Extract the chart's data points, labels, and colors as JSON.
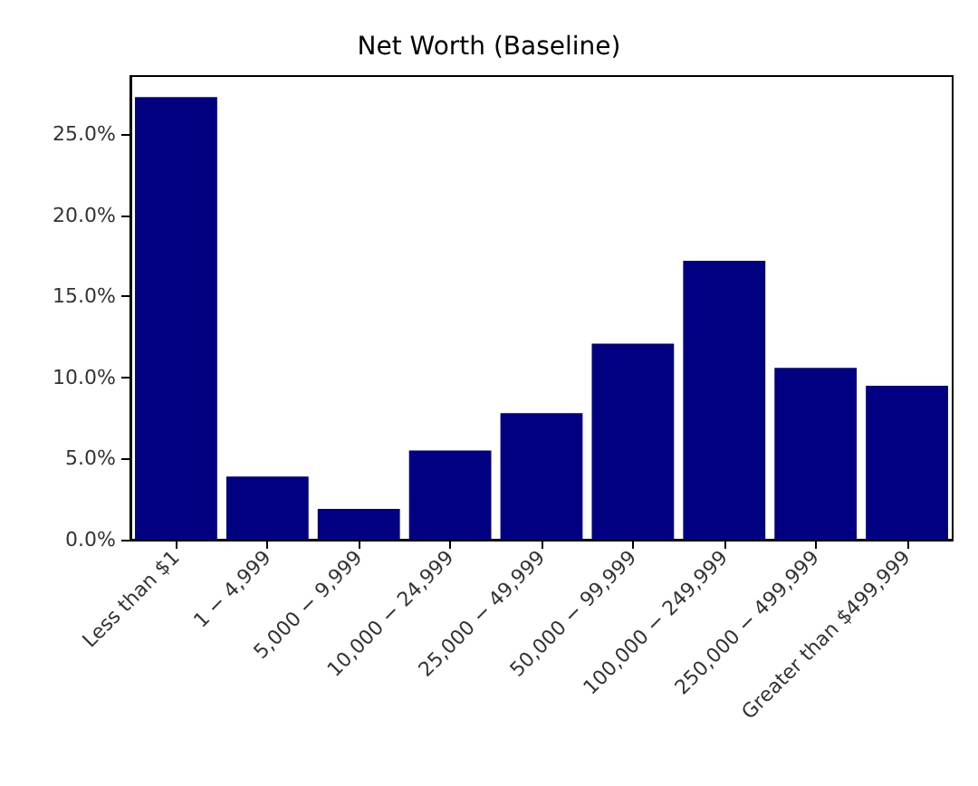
{
  "chart_data": {
    "type": "bar",
    "title": "Net Worth (Baseline)",
    "categories": [
      "Less than $1",
      "1 − 4,999",
      "5,000 − 9,999",
      "10,000 − 24,999",
      "25,000 − 49,999",
      "50,000 − 99,999",
      "100,000 − 249,999",
      "250,000 − 499,999",
      "Greater than $499,999"
    ],
    "values": [
      27.3,
      3.9,
      1.9,
      5.5,
      7.8,
      12.1,
      17.2,
      10.6,
      9.5
    ],
    "color": "#000080",
    "ylim": [
      0,
      28.6
    ],
    "yticks": [
      {
        "value": 0,
        "label": "0.0%"
      },
      {
        "value": 5,
        "label": "5.0%"
      },
      {
        "value": 10,
        "label": "10.0%"
      },
      {
        "value": 15,
        "label": "15.0%"
      },
      {
        "value": 20,
        "label": "20.0%"
      },
      {
        "value": 25,
        "label": "25.0%"
      }
    ],
    "grid": false
  }
}
